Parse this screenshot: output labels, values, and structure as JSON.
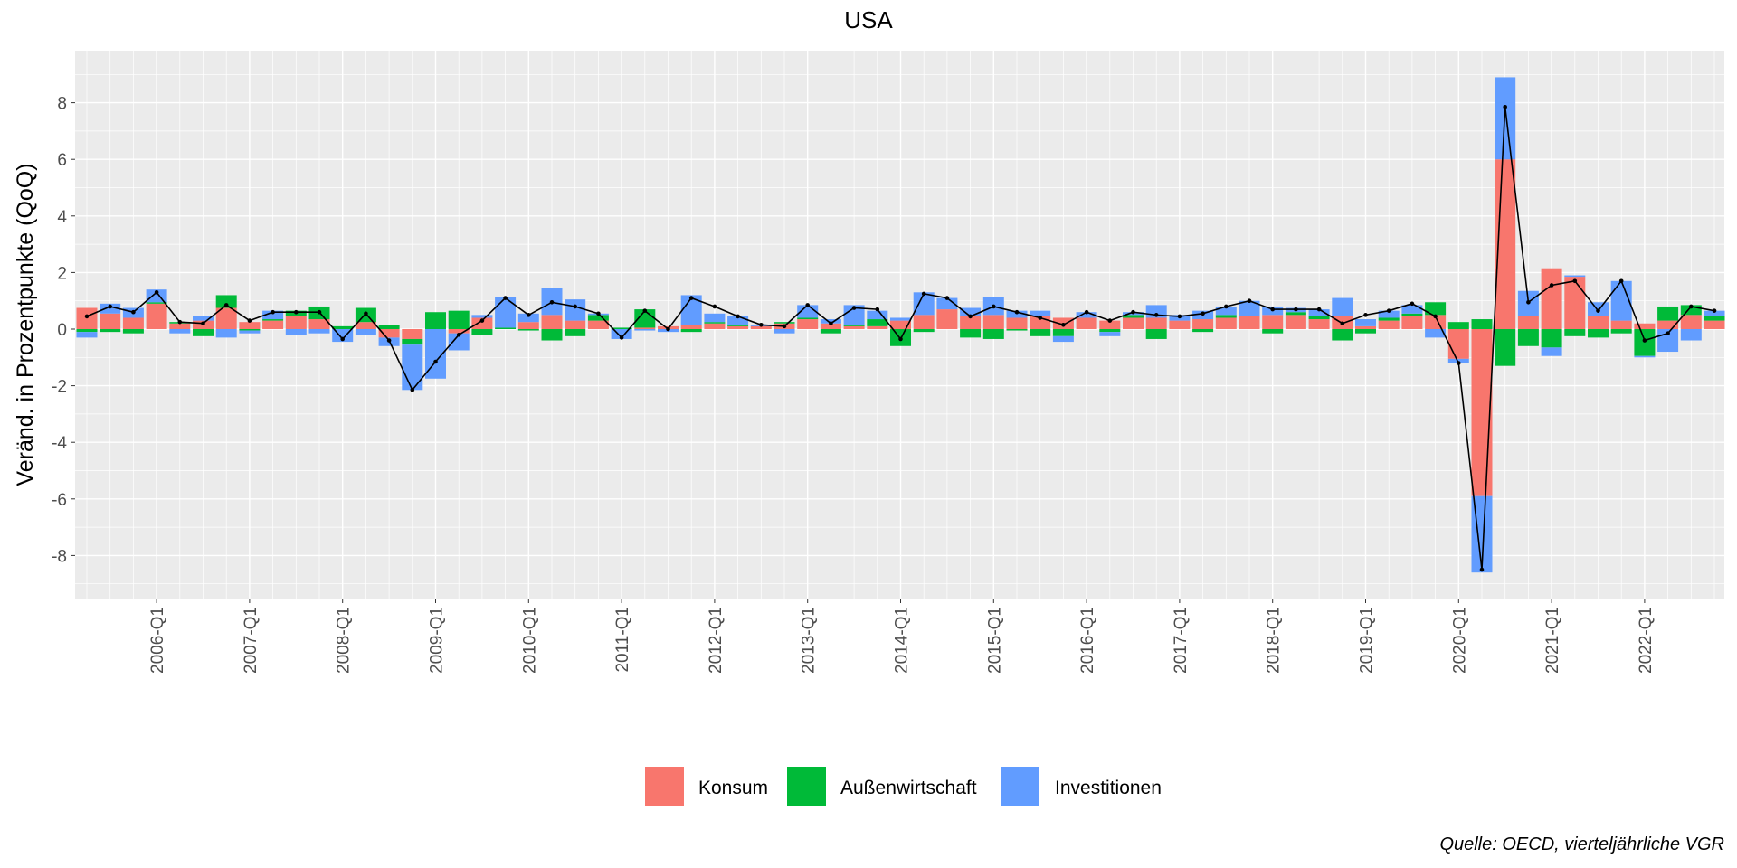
{
  "chart_data": {
    "type": "bar",
    "title": "USA",
    "xlabel": "",
    "ylabel": "Veränd. in Prozentpunkte (QoQ)",
    "caption": "Quelle: OECD, vierteljährliche VGR",
    "ylim": [
      -9.6,
      9.6
    ],
    "y_ticks": [
      8,
      6,
      4,
      2,
      0,
      -2,
      -4,
      -6,
      -8
    ],
    "y_tick_labels": [
      "8",
      "6",
      "4",
      "2",
      "0",
      "-2",
      "-4",
      "-6",
      "-8"
    ],
    "x_tick_labels": [
      "2006-Q1",
      "2007-Q1",
      "2008-Q1",
      "2009-Q1",
      "2010-Q1",
      "2011-Q1",
      "2012-Q1",
      "2013-Q1",
      "2014-Q1",
      "2015-Q1",
      "2016-Q1",
      "2017-Q1",
      "2018-Q1",
      "2019-Q1",
      "2020-Q1",
      "2021-Q1",
      "2022-Q1"
    ],
    "grid": true,
    "legend_position": "bottom",
    "colors": {
      "Konsum": "#f8766d",
      "Außenwirtschaft": "#00ba38",
      "Investitionen": "#619cff",
      "panel": "#ebebeb",
      "grid": "#ffffff",
      "line": "#000000"
    },
    "categories": [
      "2005-Q2",
      "2005-Q3",
      "2005-Q4",
      "2006-Q1",
      "2006-Q2",
      "2006-Q3",
      "2006-Q4",
      "2007-Q1",
      "2007-Q2",
      "2007-Q3",
      "2007-Q4",
      "2008-Q1",
      "2008-Q2",
      "2008-Q3",
      "2008-Q4",
      "2009-Q1",
      "2009-Q2",
      "2009-Q3",
      "2009-Q4",
      "2010-Q1",
      "2010-Q2",
      "2010-Q3",
      "2010-Q4",
      "2011-Q1",
      "2011-Q2",
      "2011-Q3",
      "2011-Q4",
      "2012-Q1",
      "2012-Q2",
      "2012-Q3",
      "2012-Q4",
      "2013-Q1",
      "2013-Q2",
      "2013-Q3",
      "2013-Q4",
      "2014-Q1",
      "2014-Q2",
      "2014-Q3",
      "2014-Q4",
      "2015-Q1",
      "2015-Q2",
      "2015-Q3",
      "2015-Q4",
      "2016-Q1",
      "2016-Q2",
      "2016-Q3",
      "2016-Q4",
      "2017-Q1",
      "2017-Q2",
      "2017-Q3",
      "2017-Q4",
      "2018-Q1",
      "2018-Q2",
      "2018-Q3",
      "2018-Q4",
      "2019-Q1",
      "2019-Q2",
      "2019-Q3",
      "2019-Q4",
      "2020-Q1",
      "2020-Q2",
      "2020-Q3",
      "2020-Q4",
      "2021-Q1",
      "2021-Q2",
      "2021-Q3",
      "2021-Q4",
      "2022-Q1",
      "2022-Q2",
      "2022-Q3",
      "2022-Q4"
    ],
    "series": [
      {
        "name": "Konsum",
        "values": [
          0.75,
          0.55,
          0.4,
          0.9,
          0.2,
          0.3,
          0.75,
          0.25,
          0.3,
          0.45,
          0.35,
          0.0,
          0.25,
          -0.3,
          -0.35,
          0.0,
          -0.15,
          0.4,
          0.0,
          0.25,
          0.5,
          0.3,
          0.3,
          0.0,
          0.05,
          0.1,
          0.15,
          0.2,
          0.1,
          0.1,
          0.2,
          0.35,
          0.2,
          0.1,
          0.1,
          0.3,
          0.5,
          0.7,
          0.45,
          0.5,
          0.4,
          0.45,
          0.4,
          0.4,
          0.3,
          0.4,
          0.4,
          0.3,
          0.35,
          0.4,
          0.45,
          0.5,
          0.5,
          0.35,
          0.45,
          0.1,
          0.3,
          0.45,
          0.5,
          -1.05,
          -5.9,
          6.0,
          0.45,
          2.15,
          1.85,
          0.45,
          0.3,
          0.2,
          0.3,
          0.5,
          0.3
        ]
      },
      {
        "name": "Außenwirtschaft",
        "values": [
          -0.1,
          -0.1,
          -0.15,
          0.05,
          0.05,
          -0.25,
          0.45,
          -0.05,
          0.05,
          0.2,
          0.45,
          0.1,
          0.5,
          0.15,
          -0.2,
          0.6,
          0.65,
          -0.2,
          0.05,
          -0.05,
          -0.4,
          -0.25,
          0.2,
          0.05,
          0.65,
          0.0,
          -0.1,
          0.05,
          0.05,
          0.0,
          0.05,
          0.05,
          -0.15,
          0.05,
          0.25,
          -0.6,
          -0.1,
          0.0,
          -0.3,
          -0.35,
          -0.05,
          -0.25,
          -0.25,
          0.0,
          -0.1,
          0.1,
          -0.35,
          0.0,
          -0.1,
          0.1,
          0.0,
          -0.15,
          0.1,
          0.1,
          -0.4,
          -0.15,
          0.1,
          0.1,
          0.45,
          0.25,
          0.35,
          -1.3,
          -0.6,
          -0.65,
          -0.25,
          -0.3,
          -0.15,
          -0.95,
          0.5,
          0.35,
          0.15
        ]
      },
      {
        "name": "Investitionen",
        "values": [
          -0.2,
          0.35,
          0.35,
          0.45,
          -0.15,
          0.15,
          -0.3,
          -0.1,
          0.3,
          -0.2,
          -0.15,
          -0.45,
          -0.2,
          -0.3,
          -1.6,
          -1.75,
          -0.6,
          0.1,
          1.1,
          0.3,
          0.95,
          0.75,
          0.05,
          -0.35,
          -0.05,
          -0.1,
          1.05,
          0.3,
          0.3,
          0.05,
          -0.15,
          0.45,
          0.15,
          0.7,
          0.3,
          0.1,
          0.8,
          0.4,
          0.3,
          0.65,
          0.25,
          0.2,
          -0.2,
          0.2,
          -0.15,
          0.1,
          0.45,
          0.2,
          0.3,
          0.3,
          0.55,
          0.3,
          0.15,
          0.25,
          0.65,
          0.25,
          0.25,
          0.3,
          -0.3,
          -0.15,
          -2.7,
          2.9,
          0.9,
          -0.3,
          0.05,
          0.5,
          1.4,
          -0.05,
          -0.8,
          -0.4,
          0.2
        ]
      },
      {
        "name": "",
        "line": true,
        "values": [
          0.45,
          0.8,
          0.6,
          1.3,
          0.25,
          0.2,
          0.85,
          0.3,
          0.6,
          0.6,
          0.6,
          -0.35,
          0.55,
          -0.4,
          -2.15,
          -1.15,
          -0.2,
          0.3,
          1.1,
          0.5,
          0.95,
          0.8,
          0.55,
          -0.3,
          0.65,
          0.0,
          1.1,
          0.8,
          0.45,
          0.15,
          0.1,
          0.85,
          0.2,
          0.75,
          0.7,
          -0.35,
          1.25,
          1.1,
          0.45,
          0.8,
          0.6,
          0.4,
          0.15,
          0.6,
          0.3,
          0.6,
          0.5,
          0.45,
          0.55,
          0.8,
          1.0,
          0.7,
          0.7,
          0.7,
          0.2,
          0.5,
          0.65,
          0.9,
          0.45,
          -1.2,
          -8.5,
          7.85,
          0.95,
          1.55,
          1.7,
          0.65,
          1.7,
          -0.4,
          -0.15,
          0.8,
          0.65
        ]
      }
    ]
  },
  "legend": {
    "items": [
      {
        "label": "Konsum",
        "color": "#f8766d"
      },
      {
        "label": "Außenwirtschaft",
        "color": "#00ba38"
      },
      {
        "label": "Investitionen",
        "color": "#619cff"
      }
    ]
  }
}
